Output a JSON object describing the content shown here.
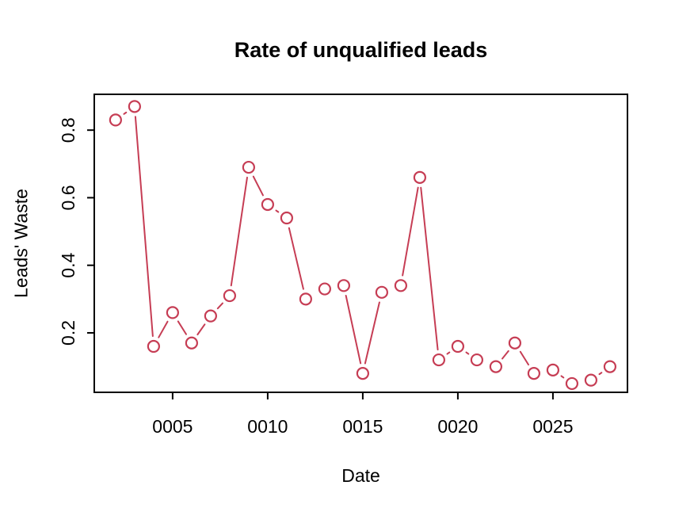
{
  "chart_data": {
    "type": "line",
    "title": "Rate of unqualified leads",
    "xlabel": "Date",
    "ylabel": "Leads' Waste",
    "series": [
      {
        "name": "leads_waste",
        "x": [
          2,
          3,
          4,
          5,
          6,
          7,
          8,
          9,
          10,
          11,
          12,
          13,
          14,
          15,
          16,
          17,
          18,
          19,
          20,
          21,
          22,
          23,
          24,
          25,
          26,
          27,
          28
        ],
        "y": [
          0.83,
          0.87,
          0.16,
          0.26,
          0.17,
          0.25,
          0.31,
          0.69,
          0.58,
          0.54,
          0.3,
          0.33,
          0.34,
          0.08,
          0.32,
          0.34,
          0.66,
          0.12,
          0.16,
          0.12,
          0.1,
          0.17,
          0.08,
          0.09,
          0.05,
          0.06,
          0.1
        ]
      }
    ],
    "x_ticks": {
      "values": [
        5,
        10,
        15,
        20,
        25
      ],
      "labels": [
        "0005",
        "0010",
        "0015",
        "0020",
        "0025"
      ]
    },
    "y_ticks": {
      "values": [
        0.2,
        0.4,
        0.6,
        0.8
      ],
      "labels": [
        "0.2",
        "0.4",
        "0.6",
        "0.8"
      ]
    },
    "xlim": [
      0.88,
      28.92
    ],
    "ylim": [
      0.024,
      0.906
    ],
    "grid": false,
    "legend": "none",
    "marker": "open-circle",
    "line_type": "both-points-and-segments",
    "colors": {
      "series": "#C63D54",
      "axis": "#000000",
      "background": "#FFFFFF"
    }
  }
}
